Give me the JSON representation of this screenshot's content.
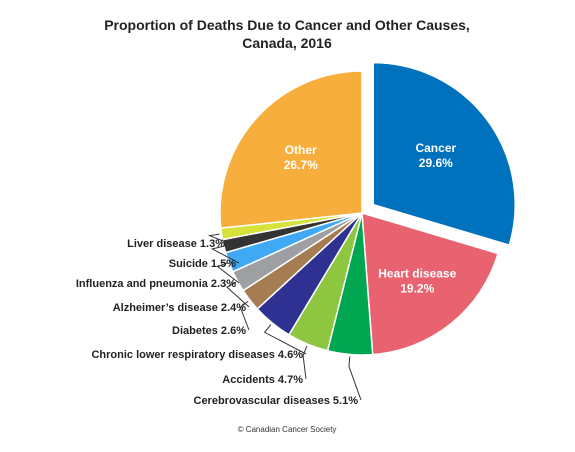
{
  "chart_data": {
    "type": "pie",
    "title_lines": [
      "Proportion of Deaths Due to Cancer and Other Causes,",
      "Canada, 2016"
    ],
    "slices": [
      {
        "label": "Cancer",
        "value": 29.6,
        "value_text": "29.6%",
        "color": "#0071BC",
        "exploded": true,
        "label_placement": "inside"
      },
      {
        "label": "Heart disease",
        "value": 19.2,
        "value_text": "19.2%",
        "color": "#E8636F",
        "label_placement": "inside"
      },
      {
        "label": "Cerebrovascular diseases",
        "value": 5.1,
        "value_text": "5.1%",
        "color": "#00A650",
        "label_placement": "outside"
      },
      {
        "label": "Accidents",
        "value": 4.7,
        "value_text": "4.7%",
        "color": "#8DC63F",
        "label_placement": "outside"
      },
      {
        "label": "Chronic lower respiratory diseases",
        "value": 4.6,
        "value_text": "4.6%",
        "color": "#2E3192",
        "label_placement": "outside"
      },
      {
        "label": "Diabetes",
        "value": 2.6,
        "value_text": "2.6%",
        "color": "#A67C52",
        "label_placement": "outside"
      },
      {
        "label": "Alzheimer’s disease",
        "value": 2.4,
        "value_text": "2.4%",
        "color": "#9D9FA2",
        "label_placement": "outside"
      },
      {
        "label": "Influenza and pneumonia",
        "value": 2.3,
        "value_text": "2.3%",
        "color": "#3FA9F5",
        "label_placement": "outside"
      },
      {
        "label": "Suicide",
        "value": 1.5,
        "value_text": "1.5%",
        "color": "#333333",
        "label_placement": "outside"
      },
      {
        "label": "Liver disease",
        "value": 1.3,
        "value_text": "1.3%",
        "color": "#D7E23A",
        "label_placement": "outside"
      },
      {
        "label": "Other",
        "value": 26.7,
        "value_text": "26.7%",
        "color": "#F7AE3C",
        "label_placement": "inside"
      }
    ],
    "credit": "© Canadian Cancer Society"
  }
}
